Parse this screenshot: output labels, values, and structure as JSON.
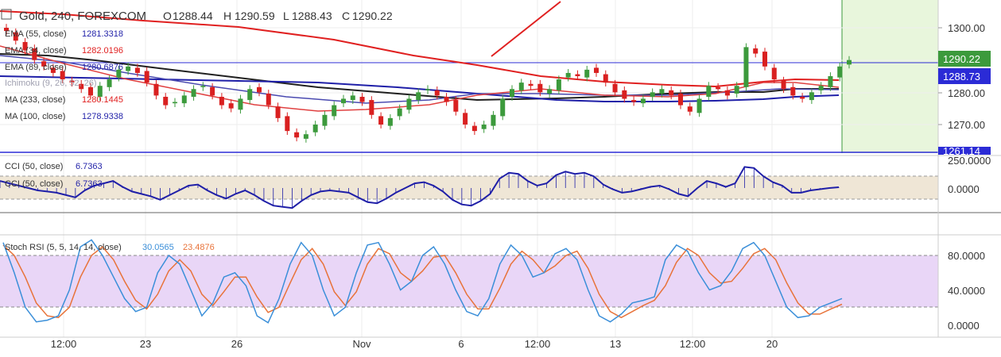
{
  "header": {
    "symbol_title": "Gold, 240, FOREXCOM",
    "open_label": "O",
    "open": "1288.44",
    "high_label": "H",
    "high": "1290.59",
    "low_label": "L",
    "low": "1288.43",
    "close_label": "C",
    "close": "1290.22"
  },
  "legend": [
    {
      "label": "EMA (55, close)",
      "value": "1281.3318",
      "color": "#1f1fa8"
    },
    {
      "label": "EMA (34, close)",
      "value": "1282.0196",
      "color": "#e02020"
    },
    {
      "label": "EMA (89, close)",
      "value": "1280.6876",
      "color": "#1f1fa8"
    },
    {
      "label": "Ichimoku (9, 26, 52, 26)",
      "value": "",
      "color": "#9090a0"
    },
    {
      "label": "MA (233, close)",
      "value": "1280.1445",
      "color": "#e02020"
    },
    {
      "label": "MA (100, close)",
      "value": "1278.9338",
      "color": "#1f1fa8"
    }
  ],
  "cci_legend": [
    {
      "label": "CCI (50, close)",
      "value": "6.7363",
      "color": "#1f1fa8"
    },
    {
      "label": "CCI (50, close)",
      "value": "6.7363",
      "color": "#1f1fa8"
    }
  ],
  "stoch_legend": {
    "label": "Stoch RSI (5, 5, 14, 14, close)",
    "k_value": "30.0565",
    "k_color": "#3b8fd9",
    "d_value": "23.4876",
    "d_color": "#e8733a"
  },
  "price_axis": {
    "ticks": [
      "1300.00",
      "1290.00",
      "1280.00",
      "1270.00"
    ],
    "last_price_label": "1290.22",
    "line_label": "1288.73",
    "bottom_label": "1261.14"
  },
  "cci_axis": {
    "ticks": [
      "250.0000",
      "0.0000"
    ]
  },
  "stoch_axis": {
    "ticks": [
      "80.0000",
      "40.0000",
      "0.0000"
    ]
  },
  "time_axis": {
    "labels": [
      "12:00",
      "23",
      "26",
      "Nov",
      "6",
      "12:00",
      "13",
      "12:00",
      "20"
    ]
  },
  "colors": {
    "up_candle": "#3c9a3c",
    "down_candle": "#d92020",
    "ema_red": "#e02020",
    "ema_blue": "#1f1fa8",
    "ma_black": "#202020",
    "cci_band": "#efe6d6",
    "stoch_band": "#e9d6f7",
    "future_zone": "#e8f6dc"
  },
  "chart_data": {
    "type": "candlestick",
    "instrument": "Gold",
    "timeframe": "240",
    "ohlc_last": {
      "open": 1288.44,
      "high": 1290.59,
      "low": 1288.43,
      "close": 1290.22
    },
    "price_ylim": [
      1261.14,
      1306
    ],
    "horizontal_line": 1288.73,
    "closes": [
      1299,
      1296,
      1293,
      1290,
      1288,
      1286,
      1284,
      1283,
      1281,
      1279,
      1282,
      1284,
      1287,
      1288,
      1286,
      1283,
      1279,
      1276,
      1277,
      1279,
      1281,
      1282,
      1279,
      1276,
      1275,
      1278,
      1281,
      1280,
      1276,
      1272,
      1268,
      1266,
      1267,
      1270,
      1273,
      1276,
      1278,
      1279,
      1277,
      1273,
      1270,
      1272,
      1275,
      1278,
      1280,
      1281,
      1279,
      1277,
      1274,
      1270,
      1268,
      1270,
      1273,
      1278,
      1281,
      1283,
      1282,
      1280,
      1281,
      1284,
      1286,
      1285,
      1287,
      1286,
      1283,
      1280,
      1278,
      1277,
      1278,
      1280,
      1281,
      1279,
      1276,
      1274,
      1278,
      1282,
      1281,
      1279,
      1282,
      1294,
      1292,
      1288,
      1284,
      1281,
      1279,
      1278,
      1280,
      1282,
      1285,
      1288,
      1290
    ],
    "cci": [
      60,
      40,
      20,
      0,
      -20,
      -30,
      -40,
      -60,
      -80,
      -20,
      20,
      40,
      60,
      10,
      -30,
      -50,
      -70,
      -100,
      -60,
      -20,
      20,
      30,
      -20,
      -60,
      -90,
      -50,
      -20,
      -60,
      -110,
      -150,
      -160,
      -170,
      -110,
      -60,
      -30,
      -20,
      -30,
      -40,
      -80,
      -120,
      -130,
      -90,
      -40,
      0,
      40,
      50,
      20,
      -30,
      -100,
      -140,
      -150,
      -110,
      -50,
      80,
      130,
      120,
      60,
      20,
      40,
      110,
      140,
      120,
      130,
      100,
      30,
      -10,
      -40,
      -30,
      -10,
      10,
      20,
      -10,
      -50,
      -70,
      0,
      60,
      40,
      10,
      40,
      180,
      170,
      100,
      50,
      20,
      -40,
      -40,
      -20,
      -10,
      0,
      6.7363
    ],
    "stoch_k": [
      95,
      60,
      20,
      3,
      5,
      10,
      40,
      90,
      98,
      80,
      55,
      30,
      15,
      20,
      60,
      80,
      70,
      40,
      10,
      25,
      55,
      60,
      45,
      10,
      2,
      30,
      70,
      95,
      80,
      40,
      10,
      20,
      60,
      92,
      95,
      70,
      40,
      50,
      80,
      90,
      70,
      40,
      15,
      10,
      30,
      70,
      92,
      80,
      55,
      60,
      82,
      88,
      75,
      40,
      10,
      3,
      12,
      25,
      28,
      32,
      75,
      92,
      85,
      60,
      40,
      45,
      62,
      88,
      95,
      80,
      50,
      20,
      8,
      10,
      20,
      25,
      30.0565
    ],
    "stoch_d": [
      92,
      80,
      55,
      25,
      10,
      8,
      20,
      55,
      80,
      90,
      75,
      50,
      28,
      18,
      35,
      62,
      75,
      62,
      35,
      22,
      38,
      55,
      55,
      32,
      14,
      20,
      48,
      75,
      88,
      70,
      38,
      22,
      38,
      70,
      88,
      82,
      60,
      50,
      62,
      78,
      80,
      60,
      35,
      18,
      18,
      42,
      70,
      85,
      75,
      60,
      68,
      80,
      85,
      65,
      35,
      15,
      8,
      15,
      22,
      28,
      45,
      72,
      88,
      80,
      60,
      48,
      50,
      65,
      82,
      88,
      75,
      48,
      25,
      12,
      12,
      18,
      23.4876
    ]
  }
}
